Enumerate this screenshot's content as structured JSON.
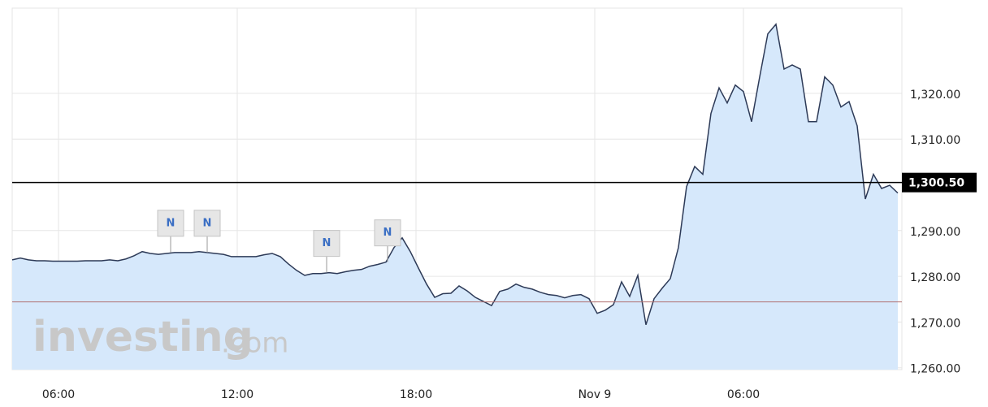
{
  "chart_data": {
    "type": "area",
    "series": [
      {
        "name": "Price",
        "color": "#2d3a57",
        "fill": "#d6e8fb",
        "values": [
          1283.6,
          1284.0,
          1283.6,
          1283.4,
          1283.4,
          1283.3,
          1283.3,
          1283.3,
          1283.3,
          1283.4,
          1283.4,
          1283.4,
          1283.6,
          1283.4,
          1283.8,
          1284.5,
          1285.4,
          1285.0,
          1284.8,
          1285.0,
          1285.2,
          1285.2,
          1285.2,
          1285.4,
          1285.2,
          1285.0,
          1284.8,
          1284.3,
          1284.3,
          1284.3,
          1284.3,
          1284.7,
          1285.0,
          1284.3,
          1282.7,
          1281.3,
          1280.2,
          1280.6,
          1280.6,
          1280.8,
          1280.6,
          1281.0,
          1281.3,
          1281.5,
          1282.2,
          1282.6,
          1283.1,
          1286.3,
          1288.4,
          1285.4,
          1281.8,
          1278.3,
          1275.4,
          1276.2,
          1276.3,
          1277.9,
          1276.8,
          1275.4,
          1274.5,
          1273.6,
          1276.7,
          1277.2,
          1278.3,
          1277.6,
          1277.2,
          1276.5,
          1276.0,
          1275.8,
          1275.3,
          1275.8,
          1276.0,
          1275.1,
          1271.9,
          1272.6,
          1273.8,
          1278.8,
          1275.6,
          1280.2,
          1269.4,
          1275.1,
          1277.4,
          1279.5,
          1286.3,
          1299.6,
          1304.0,
          1302.3,
          1315.6,
          1321.2,
          1317.9,
          1321.8,
          1320.4,
          1313.8,
          1323.6,
          1333.0,
          1335.1,
          1325.3,
          1326.2,
          1325.3,
          1313.8,
          1313.8,
          1323.6,
          1321.8,
          1317.0,
          1318.2,
          1312.9,
          1296.9,
          1302.3,
          1299.2,
          1299.9,
          1298.2
        ]
      }
    ],
    "xlim": [
      0,
      109
    ],
    "xticks": [
      {
        "value": 5.7,
        "label": "06:00"
      },
      {
        "value": 27.7,
        "label": "12:00"
      },
      {
        "value": 49.7,
        "label": "18:00"
      },
      {
        "value": 71.7,
        "label": "Nov 9"
      },
      {
        "value": 90,
        "label": "06:00"
      }
    ],
    "ylim": [
      1259.6,
      1340.4
    ],
    "yticks": [
      {
        "value": 1260,
        "label": "1,260.00"
      },
      {
        "value": 1270,
        "label": "1,270.00"
      },
      {
        "value": 1280,
        "label": "1,280.00"
      },
      {
        "value": 1290,
        "label": "1,290.00"
      },
      {
        "value": 1310,
        "label": "1,310.00"
      },
      {
        "value": 1320,
        "label": "1,320.00"
      }
    ],
    "current_price": {
      "value": 1300.5,
      "label": "1,300.50"
    },
    "previous_close": 1274.4,
    "grid": true,
    "annotations": [
      {
        "x": 19.5,
        "label": "N"
      },
      {
        "x": 24,
        "label": "N"
      },
      {
        "x": 38.7,
        "label": "N"
      },
      {
        "x": 46.2,
        "label": "N"
      }
    ],
    "watermark": {
      "brand": "investing",
      "suffix": ".com"
    }
  }
}
